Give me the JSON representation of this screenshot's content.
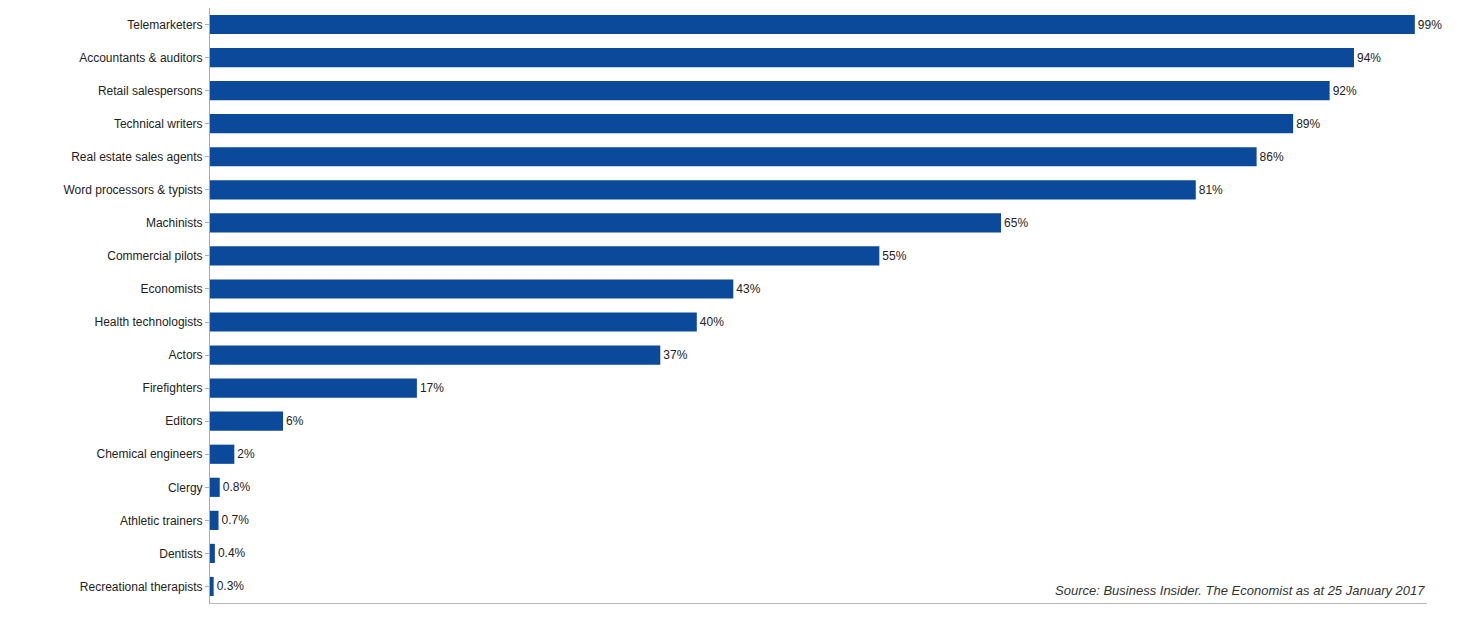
{
  "chart_data": {
    "type": "bar",
    "orientation": "horizontal",
    "categories": [
      "Telemarketers",
      "Accountants & auditors",
      "Retail salespersons",
      "Technical writers",
      "Real estate sales agents",
      "Word processors & typists",
      "Machinists",
      "Commercial pilots",
      "Economists",
      "Health technologists",
      "Actors",
      "Firefighters",
      "Editors",
      "Chemical engineers",
      "Clergy",
      "Athletic trainers",
      "Dentists",
      "Recreational therapists"
    ],
    "values": [
      99,
      94,
      92,
      89,
      86,
      81,
      65,
      55,
      43,
      40,
      37,
      17,
      6,
      2,
      0.8,
      0.7,
      0.4,
      0.3
    ],
    "value_labels": [
      "99%",
      "94%",
      "92%",
      "89%",
      "86%",
      "81%",
      "65%",
      "55%",
      "43%",
      "40%",
      "37%",
      "17%",
      "6%",
      "2%",
      "0.8%",
      "0.7%",
      "0.4%",
      "0.3%"
    ],
    "color": "#0b4a9a",
    "xlim": [
      0,
      100
    ],
    "xticks": [],
    "tick_labels": "y",
    "data_labels": true,
    "grid": false,
    "annotations": [
      "Source: Business Insider. The Economist as at 25 January 2017"
    ]
  }
}
